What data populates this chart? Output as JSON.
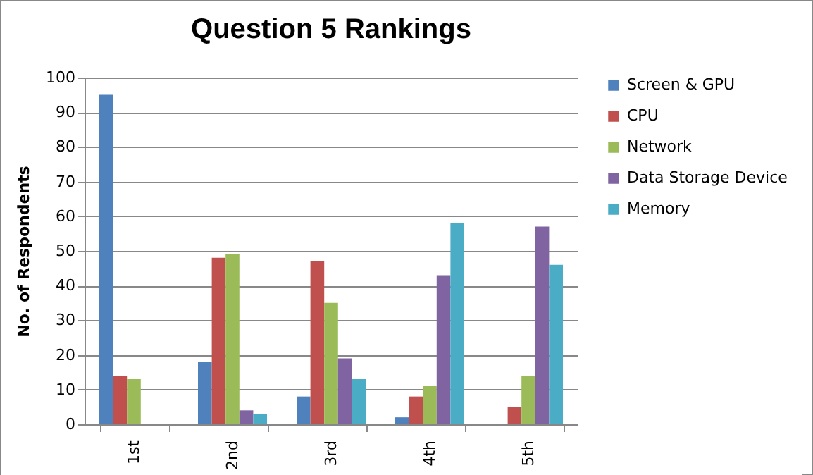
{
  "chart_data": {
    "type": "bar",
    "title": "Question 5 Rankings",
    "ylabel": "No. of Respondents",
    "categories": [
      "1st",
      "2nd",
      "3rd",
      "4th",
      "5th"
    ],
    "series": [
      {
        "name": "Screen & GPU",
        "color": "#4f81bd",
        "values": [
          95,
          18,
          8,
          2,
          0
        ]
      },
      {
        "name": "CPU",
        "color": "#c0504d",
        "values": [
          14,
          48,
          47,
          8,
          5
        ]
      },
      {
        "name": "Network",
        "color": "#9bbb59",
        "values": [
          13,
          49,
          35,
          11,
          14
        ]
      },
      {
        "name": "Data Storage Device",
        "color": "#8064a2",
        "values": [
          0,
          4,
          19,
          43,
          57
        ]
      },
      {
        "name": "Memory",
        "color": "#4bacc6",
        "values": [
          0,
          3,
          13,
          58,
          46
        ]
      }
    ],
    "ylim": [
      0,
      100
    ],
    "yticks": [
      0,
      10,
      20,
      30,
      40,
      50,
      60,
      70,
      80,
      90,
      100
    ],
    "grid": "y",
    "legend": "right"
  }
}
